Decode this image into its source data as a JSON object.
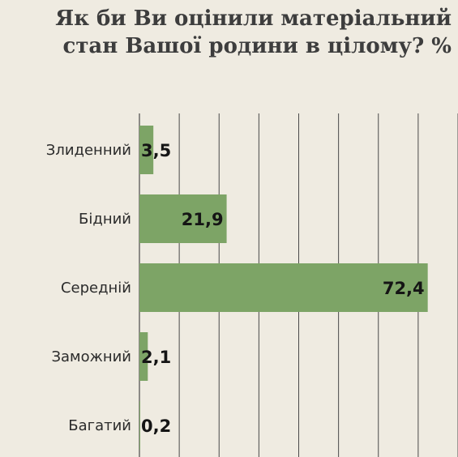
{
  "title_lines": [
    "Як би Ви оцінили матеріальний",
    "стан Вашої родини в цілому? %"
  ],
  "colors": {
    "bar": "#7da466",
    "grid": "#4a4a4a",
    "background": "#efebe1"
  },
  "chart_data": {
    "type": "bar",
    "orientation": "horizontal",
    "title": "Як би Ви оцінили матеріальний стан Вашої родини в цілому? %",
    "categories": [
      "Злиденний",
      "Бідний",
      "Середній",
      "Заможний",
      "Багатий"
    ],
    "values": [
      3.5,
      21.9,
      72.4,
      2.1,
      0.2
    ],
    "value_labels": [
      "3,5",
      "21,9",
      "72,4",
      "2,1",
      "0,2"
    ],
    "xlim": [
      0,
      80
    ],
    "grid": true,
    "legend": "none"
  }
}
